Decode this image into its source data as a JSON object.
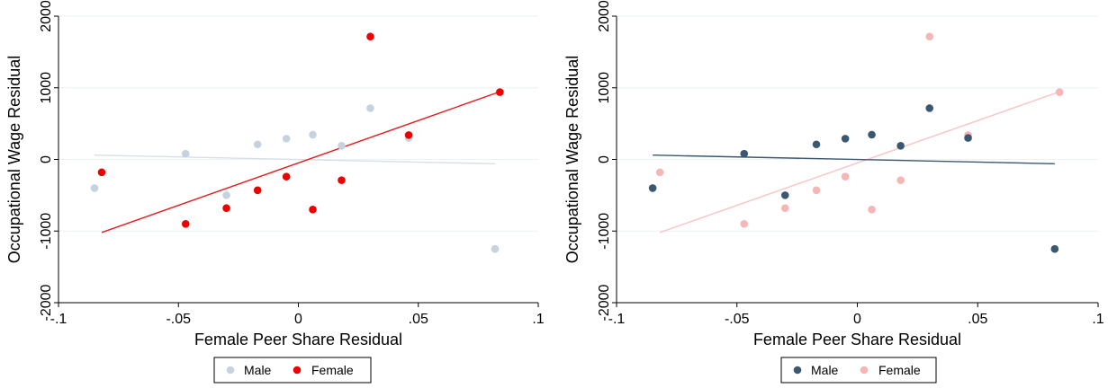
{
  "chart_data": [
    {
      "type": "scatter",
      "title": "",
      "xlabel": "Female Peer Share Residual",
      "ylabel": "Occupational Wage Residual",
      "xlim": [
        -0.1,
        0.1
      ],
      "ylim": [
        -2000,
        2000
      ],
      "xticks": [
        -0.1,
        -0.05,
        0,
        0.05,
        0.1
      ],
      "xtick_labels": [
        "-.1",
        "-.05",
        "0",
        ".05",
        ".1"
      ],
      "yticks": [
        -2000,
        -1000,
        0,
        1000,
        2000
      ],
      "ytick_labels": [
        "-2000",
        "-1000",
        "0",
        "1000",
        "2000"
      ],
      "grid": true,
      "legend_position": "bottom",
      "series": [
        {
          "name": "Male",
          "color": "#c6d3df",
          "fit_color": "#d6e0e8",
          "points": [
            {
              "x": -0.085,
              "y": -400
            },
            {
              "x": -0.047,
              "y": 80
            },
            {
              "x": -0.03,
              "y": -500
            },
            {
              "x": -0.017,
              "y": 210
            },
            {
              "x": -0.005,
              "y": 290
            },
            {
              "x": 0.006,
              "y": 345
            },
            {
              "x": 0.018,
              "y": 190
            },
            {
              "x": 0.03,
              "y": 715
            },
            {
              "x": 0.046,
              "y": 300
            },
            {
              "x": 0.082,
              "y": -1250
            }
          ],
          "fit": [
            {
              "x": -0.085,
              "y": 60
            },
            {
              "x": 0.082,
              "y": -60
            }
          ]
        },
        {
          "name": "Female",
          "color": "#ee0000",
          "fit_color": "#e8191c",
          "points": [
            {
              "x": -0.082,
              "y": -180
            },
            {
              "x": -0.047,
              "y": -900
            },
            {
              "x": -0.03,
              "y": -680
            },
            {
              "x": -0.017,
              "y": -430
            },
            {
              "x": -0.005,
              "y": -240
            },
            {
              "x": 0.006,
              "y": -700
            },
            {
              "x": 0.018,
              "y": -290
            },
            {
              "x": 0.03,
              "y": 1715
            },
            {
              "x": 0.046,
              "y": 340
            },
            {
              "x": 0.084,
              "y": 940
            }
          ],
          "fit": [
            {
              "x": -0.082,
              "y": -1020
            },
            {
              "x": 0.084,
              "y": 945
            }
          ]
        }
      ]
    },
    {
      "type": "scatter",
      "title": "",
      "xlabel": "Female Peer Share Residual",
      "ylabel": "Occupational Wage Residual",
      "xlim": [
        -0.1,
        0.1
      ],
      "ylim": [
        -2000,
        2000
      ],
      "xticks": [
        -0.1,
        -0.05,
        0,
        0.05,
        0.1
      ],
      "xtick_labels": [
        "-.1",
        "-.05",
        "0",
        ".05",
        ".1"
      ],
      "yticks": [
        -2000,
        -1000,
        0,
        1000,
        2000
      ],
      "ytick_labels": [
        "-2000",
        "-1000",
        "0",
        "1000",
        "2000"
      ],
      "grid": true,
      "legend_position": "bottom",
      "series": [
        {
          "name": "Male",
          "color": "#3b5873",
          "fit_color": "#3b5873",
          "points": [
            {
              "x": -0.085,
              "y": -400
            },
            {
              "x": -0.047,
              "y": 80
            },
            {
              "x": -0.03,
              "y": -500
            },
            {
              "x": -0.017,
              "y": 210
            },
            {
              "x": -0.005,
              "y": 290
            },
            {
              "x": 0.006,
              "y": 345
            },
            {
              "x": 0.018,
              "y": 190
            },
            {
              "x": 0.03,
              "y": 715
            },
            {
              "x": 0.046,
              "y": 300
            },
            {
              "x": 0.082,
              "y": -1250
            }
          ],
          "fit": [
            {
              "x": -0.085,
              "y": 60
            },
            {
              "x": 0.082,
              "y": -60
            }
          ]
        },
        {
          "name": "Female",
          "color": "#f6b6b6",
          "fit_color": "#f8c4c4",
          "points": [
            {
              "x": -0.082,
              "y": -180
            },
            {
              "x": -0.047,
              "y": -900
            },
            {
              "x": -0.03,
              "y": -680
            },
            {
              "x": -0.017,
              "y": -430
            },
            {
              "x": -0.005,
              "y": -240
            },
            {
              "x": 0.006,
              "y": -700
            },
            {
              "x": 0.018,
              "y": -290
            },
            {
              "x": 0.03,
              "y": 1715
            },
            {
              "x": 0.046,
              "y": 340
            },
            {
              "x": 0.084,
              "y": 940
            }
          ],
          "fit": [
            {
              "x": -0.082,
              "y": -1020
            },
            {
              "x": 0.084,
              "y": 945
            }
          ]
        }
      ]
    }
  ]
}
